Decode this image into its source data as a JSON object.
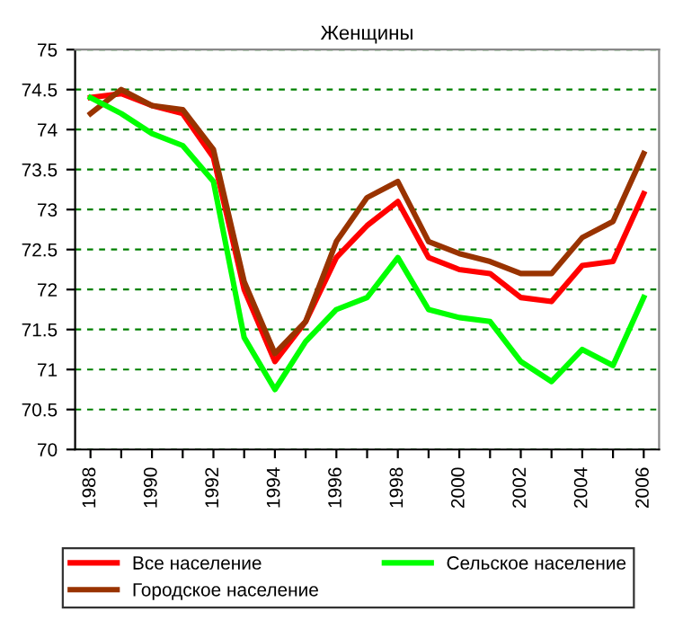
{
  "chart_data": {
    "type": "line",
    "title": "Женщины",
    "x": [
      1988,
      1989,
      1990,
      1991,
      1992,
      1993,
      1994,
      1995,
      1996,
      1997,
      1998,
      1999,
      2000,
      2001,
      2002,
      2003,
      2004,
      2005,
      2006
    ],
    "series": [
      {
        "name": "Все население",
        "color": "#ff0000",
        "values": [
          74.4,
          74.45,
          74.3,
          74.2,
          73.65,
          72.0,
          71.1,
          71.6,
          72.4,
          72.8,
          73.1,
          72.4,
          72.25,
          72.2,
          71.9,
          71.85,
          72.3,
          72.35,
          73.2
        ]
      },
      {
        "name": "Городское население",
        "color": "#993300",
        "values": [
          74.2,
          74.5,
          74.3,
          74.25,
          73.75,
          72.1,
          71.2,
          71.6,
          72.6,
          73.15,
          73.35,
          72.6,
          72.45,
          72.35,
          72.2,
          72.2,
          72.65,
          72.85,
          73.7
        ]
      },
      {
        "name": "Сельское население",
        "color": "#00ff00",
        "values": [
          74.4,
          74.2,
          73.95,
          73.8,
          73.35,
          71.4,
          70.75,
          71.35,
          71.75,
          71.9,
          72.4,
          71.75,
          71.65,
          71.6,
          71.1,
          70.85,
          71.25,
          71.05,
          71.9
        ]
      }
    ],
    "xlim": [
      1987.5,
      2006.5
    ],
    "xticks": [
      1988,
      {
        "value": 1989,
        "label": null
      },
      1990,
      {
        "value": 1991,
        "label": null
      },
      1992,
      {
        "value": 1993,
        "label": null
      },
      1994,
      {
        "value": 1995,
        "label": null
      },
      1996,
      {
        "value": 1997,
        "label": null
      },
      1998,
      {
        "value": 1999,
        "label": null
      },
      2000,
      {
        "value": 2001,
        "label": null
      },
      2002,
      {
        "value": 2003,
        "label": null
      },
      2004,
      {
        "value": 2005,
        "label": null
      },
      2006
    ],
    "ylim": [
      70,
      75
    ],
    "yticks": [
      70,
      70.5,
      71,
      71.5,
      72,
      72.5,
      73,
      73.5,
      74,
      74.5,
      75
    ],
    "grid": "y",
    "legend": "bottom",
    "line_style": "solid",
    "marker": "none"
  }
}
